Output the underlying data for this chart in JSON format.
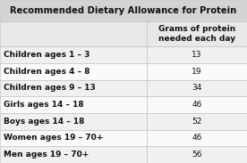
{
  "title": "Recommended Dietary Allowance for Protein",
  "col_header": "Grams of protein\nneeded each day",
  "rows": [
    [
      "Children ages 1 – 3",
      "13"
    ],
    [
      "Children ages 4 – 8",
      "19"
    ],
    [
      "Children ages 9 – 13",
      "34"
    ],
    [
      "Girls ages 14 – 18",
      "46"
    ],
    [
      "Boys ages 14 – 18",
      "52"
    ],
    [
      "Women ages 19 – 70+",
      "46"
    ],
    [
      "Men ages 19 – 70+",
      "56"
    ]
  ],
  "title_bg": "#d4d4d4",
  "header_bg": "#e8e8e8",
  "row_bg_odd": "#f0f0f0",
  "row_bg_even": "#fafafa",
  "border_color": "#bbbbbb",
  "text_color": "#111111",
  "title_fontsize": 7.2,
  "header_fontsize": 6.5,
  "row_fontsize": 6.5,
  "col_split": 0.595,
  "fig_bg": "#ffffff"
}
